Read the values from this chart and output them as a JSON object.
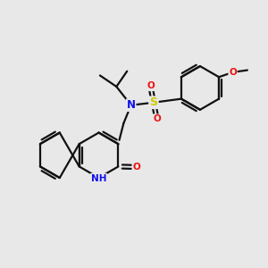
{
  "background_color": "#e8e8e8",
  "bond_color": "#111111",
  "bond_width": 1.6,
  "n_color": "#1010ee",
  "o_color": "#ee1010",
  "s_color": "#cccc00",
  "font_size": 7.5,
  "fig_width": 3.0,
  "fig_height": 3.0,
  "dpi": 100,
  "xlim": [
    0,
    10
  ],
  "ylim": [
    0,
    10
  ]
}
